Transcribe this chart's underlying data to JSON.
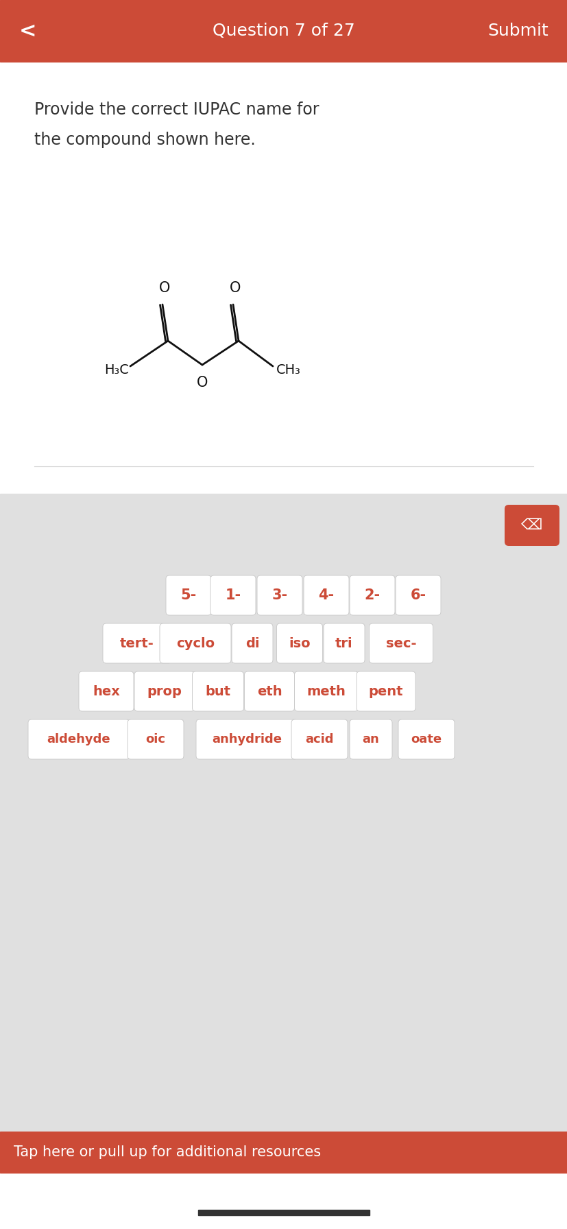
{
  "header_color": "#cc4b37",
  "header_text_color": "#ffffff",
  "header_title": "Question 7 of 27",
  "header_submit": "Submit",
  "header_back": "<",
  "question_line1": "Provide the correct IUPAC name for",
  "question_line2": "the compound shown here.",
  "white_bg": "#ffffff",
  "keyboard_bg": "#e0e0e0",
  "button_bg": "#ffffff",
  "button_text_color": "#cc4b37",
  "button_border": "#cccccc",
  "row1": [
    "5-",
    "1-",
    "3-",
    "4-",
    "2-",
    "6-"
  ],
  "row2": [
    "tert-",
    "cyclo",
    "di",
    "iso",
    "tri",
    "sec-"
  ],
  "row3": [
    "hex",
    "prop",
    "but",
    "eth",
    "meth",
    "pent"
  ],
  "row4": [
    "aldehyde",
    "oic",
    "anhydride",
    "acid",
    "an",
    "oate"
  ],
  "footer_color": "#cc4b37",
  "footer_text": "Tap here or pull up for additional resources",
  "separator_color": "#d0d0d0",
  "delete_btn_color": "#cc4b37",
  "bottom_bar_color": "#333333",
  "bond_color": "#111111",
  "text_color": "#333333"
}
